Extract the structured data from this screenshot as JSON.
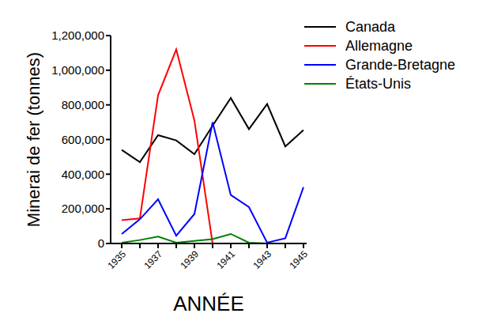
{
  "chart_data": {
    "type": "line",
    "x_label": "ANNÉE",
    "y_label": "Minerai de fer (tonnes)",
    "categories": [
      1935,
      null,
      1937,
      null,
      1939,
      null,
      1941,
      null,
      1943,
      null,
      1945
    ],
    "ylim": [
      0,
      1200000
    ],
    "yticks": [
      0,
      {
        "value": 200000,
        "label": "200,000"
      },
      {
        "value": 400000,
        "label": "400,000"
      },
      {
        "value": 600000,
        "label": "600,000"
      },
      {
        "value": 800000,
        "label": "800,000"
      },
      {
        "value": 1000000,
        "label": "1,000,000"
      },
      {
        "value": 1200000,
        "label": "1,200,000"
      }
    ],
    "grid": false,
    "legend": "upper right",
    "series": [
      {
        "name": "Canada",
        "color": "#000000",
        "values": [
          540000,
          470000,
          625000,
          595000,
          515000,
          680000,
          840000,
          660000,
          805000,
          560000,
          655000
        ]
      },
      {
        "name": "Allemagne",
        "color": "#ff0000",
        "values": [
          135000,
          145000,
          855000,
          1120000,
          710000,
          0,
          0,
          0,
          0,
          0,
          0
        ]
      },
      {
        "name": "Grande-Bretagne",
        "color": "#0000ff",
        "values": [
          55000,
          140000,
          255000,
          45000,
          170000,
          700000,
          280000,
          210000,
          5000,
          30000,
          325000
        ]
      },
      {
        "name": "États-Unis",
        "color": "#008000",
        "values": [
          5000,
          20000,
          40000,
          5000,
          15000,
          25000,
          55000,
          5000,
          0,
          0,
          0
        ]
      }
    ]
  }
}
